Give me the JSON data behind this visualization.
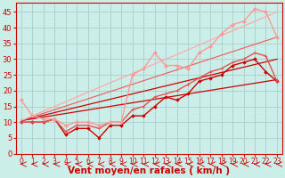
{
  "background_color": "#cceee8",
  "grid_color": "#aacccc",
  "xlabel": "Vent moyen/en rafales ( km/h )",
  "xlabel_color": "#cc0000",
  "xlabel_fontsize": 7.5,
  "tick_color": "#cc0000",
  "xlim": [
    -0.5,
    23.5
  ],
  "ylim": [
    0,
    48
  ],
  "yticks": [
    0,
    5,
    10,
    15,
    20,
    25,
    30,
    35,
    40,
    45
  ],
  "xticks": [
    0,
    1,
    2,
    3,
    4,
    5,
    6,
    7,
    8,
    9,
    10,
    11,
    12,
    13,
    14,
    15,
    16,
    17,
    18,
    19,
    20,
    21,
    22,
    23
  ],
  "lines": [
    {
      "x": [
        0,
        23
      ],
      "y": [
        10.5,
        23.5
      ],
      "color": "#cc0000",
      "linewidth": 0.9,
      "marker": null,
      "linestyle": "-"
    },
    {
      "x": [
        0,
        23
      ],
      "y": [
        10.5,
        30.0
      ],
      "color": "#cc0000",
      "linewidth": 0.9,
      "marker": null,
      "linestyle": "-"
    },
    {
      "x": [
        0,
        23
      ],
      "y": [
        10.5,
        37.0
      ],
      "color": "#ee6666",
      "linewidth": 0.9,
      "marker": null,
      "linestyle": "-"
    },
    {
      "x": [
        0,
        23
      ],
      "y": [
        10.5,
        45.0
      ],
      "color": "#ffaaaa",
      "linewidth": 0.9,
      "marker": null,
      "linestyle": "-"
    },
    {
      "x": [
        0,
        1,
        2,
        3,
        4,
        5,
        6,
        7,
        8,
        9,
        10,
        11,
        12,
        13,
        14,
        15,
        16,
        17,
        18,
        19,
        20,
        21,
        22,
        23
      ],
      "y": [
        10,
        10,
        10,
        11,
        6,
        8,
        8,
        5,
        9,
        9,
        12,
        12,
        15,
        18,
        17,
        19,
        23,
        24,
        25,
        28,
        29,
        30,
        26,
        23
      ],
      "color": "#cc0000",
      "linewidth": 1.0,
      "marker": "D",
      "markersize": 1.8,
      "linestyle": "-"
    },
    {
      "x": [
        0,
        1,
        2,
        3,
        4,
        5,
        6,
        7,
        8,
        9,
        10,
        11,
        12,
        13,
        14,
        15,
        16,
        17,
        18,
        19,
        20,
        21,
        22,
        23
      ],
      "y": [
        10,
        10,
        10,
        11,
        7,
        9,
        9,
        8,
        10,
        10,
        14,
        15,
        18,
        19,
        20,
        22,
        24,
        26,
        27,
        29,
        30,
        32,
        31,
        23
      ],
      "color": "#dd5555",
      "linewidth": 1.0,
      "marker": "+",
      "markersize": 3.0,
      "linestyle": "-"
    },
    {
      "x": [
        0,
        1,
        2,
        3,
        4,
        5,
        6,
        7,
        8,
        9,
        10,
        11,
        12,
        13,
        14,
        15,
        16,
        17,
        18,
        19,
        20,
        21,
        22,
        23
      ],
      "y": [
        17,
        12,
        11,
        11,
        9,
        10,
        10,
        9,
        10,
        10,
        25,
        27,
        32,
        28,
        28,
        27,
        32,
        34,
        38,
        41,
        42,
        46,
        45,
        37
      ],
      "color": "#ff9999",
      "linewidth": 1.0,
      "marker": "D",
      "markersize": 2.0,
      "linestyle": "-"
    }
  ],
  "arrow_color": "#cc0000"
}
